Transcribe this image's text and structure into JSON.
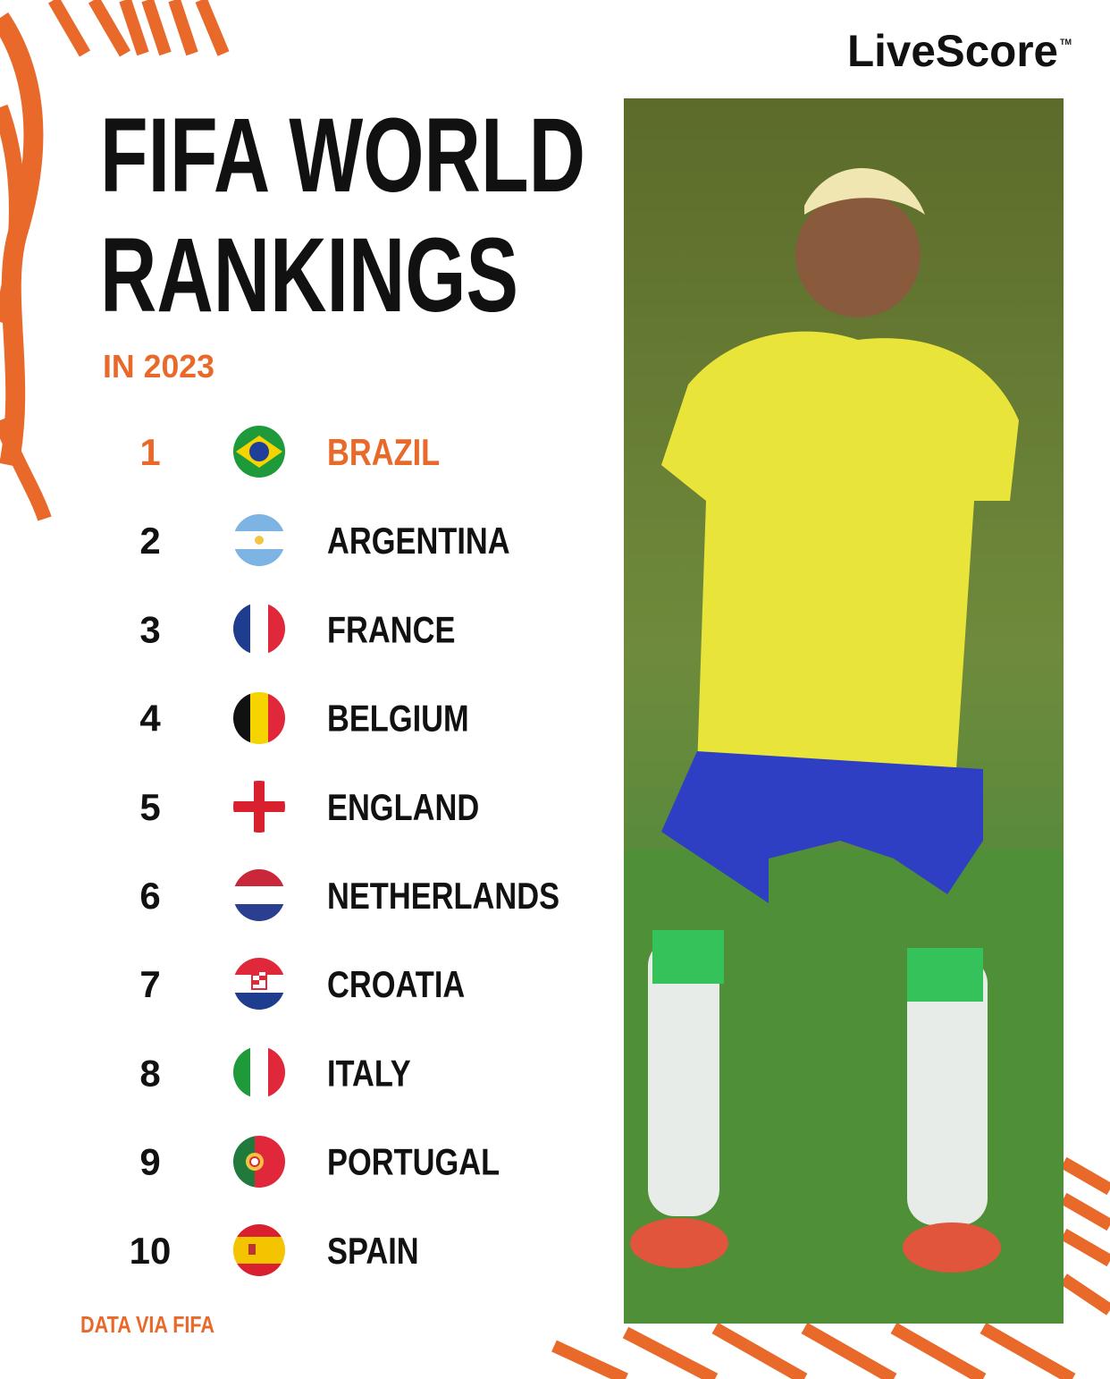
{
  "brand": {
    "name": "LiveScore",
    "mark": "TM"
  },
  "header": {
    "title_lines": [
      "FIFA WORLD",
      "RANKINGS"
    ],
    "subtitle": "IN 2023"
  },
  "rankings": [
    {
      "rank": 1,
      "country": "BRAZIL"
    },
    {
      "rank": 2,
      "country": "ARGENTINA"
    },
    {
      "rank": 3,
      "country": "FRANCE"
    },
    {
      "rank": 4,
      "country": "BELGIUM"
    },
    {
      "rank": 5,
      "country": "ENGLAND"
    },
    {
      "rank": 6,
      "country": "NETHERLANDS"
    },
    {
      "rank": 7,
      "country": "CROATIA"
    },
    {
      "rank": 8,
      "country": "ITALY"
    },
    {
      "rank": 9,
      "country": "PORTUGAL"
    },
    {
      "rank": 10,
      "country": "SPAIN"
    }
  ],
  "footer": {
    "source": "DATA VIA FIFA"
  }
}
